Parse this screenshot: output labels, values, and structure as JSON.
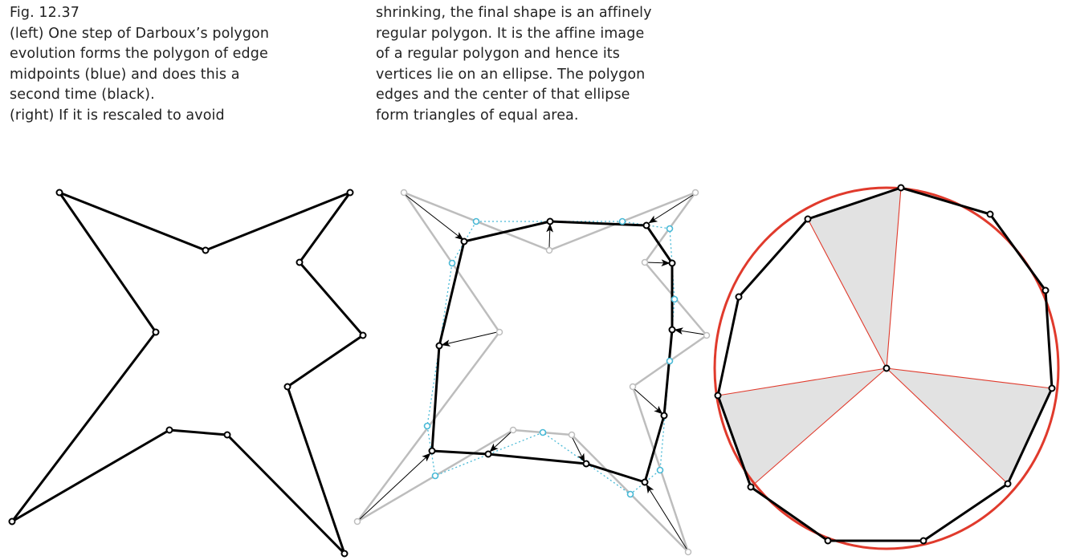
{
  "caption": {
    "col1": [
      "Fig. 12.37",
      "(left) One step of Darboux’s polygon",
      "evolution forms the polygon of edge",
      "midpoints (blue) and does this a",
      "second time (black).",
      "(right) If it is rescaled to avoid"
    ],
    "col2": [
      "shrinking, the final shape is an affinely",
      "regular polygon. It is the affine image",
      "of a regular polygon and hence its",
      "vertices lie on an ellipse. The polygon",
      "edges and the center of that ellipse",
      "form triangles of equal area."
    ]
  },
  "colors": {
    "polygon": "#000000",
    "previous_polygon": "#bdbdbd",
    "midpoint_polygon": "#48b9d6",
    "ellipse": "#e03a2c",
    "triangle_fill": "#e2e2e2"
  }
}
